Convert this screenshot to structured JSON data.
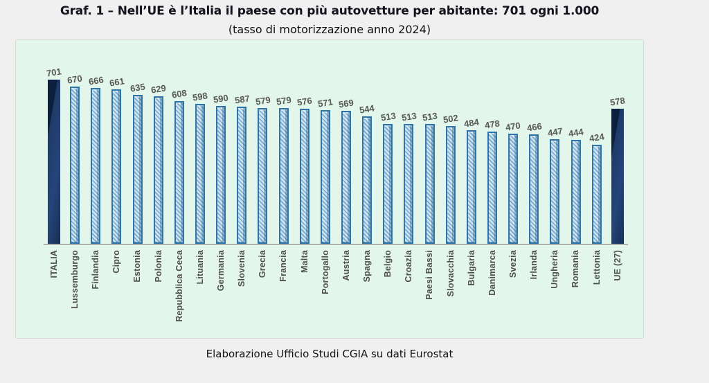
{
  "header": {
    "title": "Graf. 1 – Nell’UE è l’Italia il paese con più autovetture per abitante: 701 ogni 1.000",
    "subtitle": "(tasso di motorizzazione anno 2024)"
  },
  "caption": "Elaborazione Ufficio Studi CGIA su dati Eurostat",
  "colors": {
    "page_bg": "#f1f0f1",
    "chart_bg": "#e3f6ec",
    "bar_fill": "#cbe3f4",
    "bar_stripe": "#3c78a3",
    "bar_border": "#2e74a8",
    "highlight_bar": "#1e3a66",
    "highlight_bar_edge": "#0c1f3e",
    "value_label": "#585858",
    "category_label": "#4e4e4e"
  },
  "chart_data": {
    "type": "bar",
    "title": "Tasso di motorizzazione anno 2024 (autovetture ogni 1.000 abitanti)",
    "xlabel": "",
    "ylabel": "",
    "ylim": [
      0,
      720
    ],
    "grid": false,
    "legend": false,
    "value_labels_shown": true,
    "categories": [
      "ITALIA",
      "Lussemburgo",
      "Finlandia",
      "Cipro",
      "Estonia",
      "Polonia",
      "Repubblica Ceca",
      "Lituania",
      "Germania",
      "Slovenia",
      "Grecia",
      "Francia",
      "Malta",
      "Portogallo",
      "Austria",
      "Spagna",
      "Belgio",
      "Croazia",
      "Paesi Bassi",
      "Slovacchia",
      "Bulgaria",
      "Danimarca",
      "Svezia",
      "Irlanda",
      "Ungheria",
      "Romania",
      "Lettonia",
      "UE (27)"
    ],
    "values": [
      701,
      670,
      666,
      661,
      635,
      629,
      608,
      598,
      590,
      587,
      579,
      579,
      576,
      571,
      569,
      544,
      513,
      513,
      513,
      502,
      484,
      478,
      470,
      466,
      447,
      444,
      424,
      578
    ],
    "highlighted_categories": [
      "ITALIA",
      "UE (27)"
    ]
  }
}
